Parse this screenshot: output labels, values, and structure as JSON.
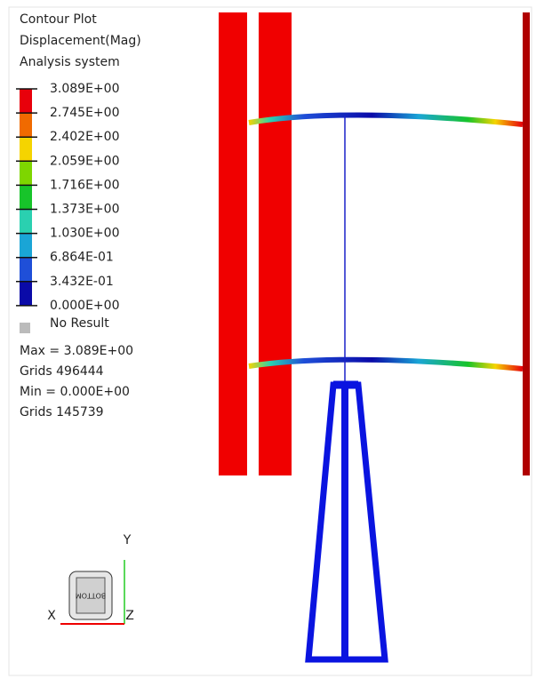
{
  "legend": {
    "title_lines": [
      "Contour Plot",
      "Displacement(Mag)",
      "Analysis system"
    ],
    "levels": [
      "3.089E+00",
      "2.745E+00",
      "2.402E+00",
      "2.059E+00",
      "1.716E+00",
      "1.373E+00",
      "1.030E+00",
      "6.864E-01",
      "3.432E-01",
      "0.000E+00"
    ],
    "no_result": "No Result"
  },
  "stats": [
    "Max = 3.089E+00",
    "Grids 496444",
    "Min = 0.000E+00",
    "Grids 145739"
  ],
  "triad": {
    "y": "Y",
    "x": "X",
    "z": "Z",
    "cube": "BOTTOM"
  }
}
